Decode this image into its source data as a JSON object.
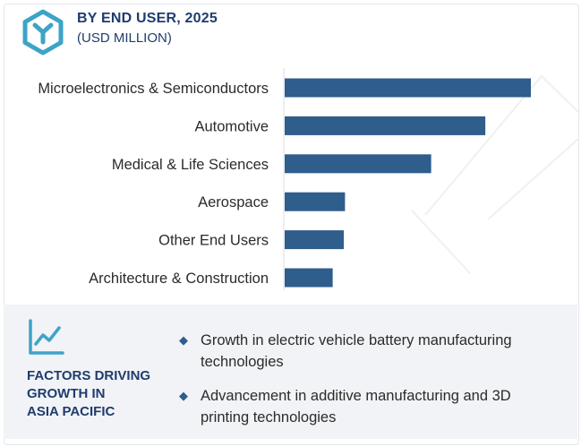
{
  "header": {
    "title": "BY END USER, 2025",
    "subtitle": "(USD MILLION)"
  },
  "chart_data": {
    "type": "bar",
    "orientation": "horizontal",
    "categories": [
      "Microelectronics & Semiconductors",
      "Automotive",
      "Medical & Life Sciences",
      "Aerospace",
      "Other End Users",
      "Architecture & Construction"
    ],
    "values": [
      100,
      81.5,
      59.5,
      24.5,
      24,
      19.5
    ],
    "value_scale": "relative (no axis values shown)",
    "xlabel": "",
    "ylabel": "",
    "grid": false,
    "bar_color": "#2f5d8c"
  },
  "factors": {
    "title_lines": [
      "FACTORS DRIVING",
      "GROWTH IN",
      "ASIA PACIFIC"
    ],
    "items": [
      "Growth in electric vehicle battery manufacturing technologies",
      "Advancement in additive manufacturing and 3D printing technologies"
    ]
  },
  "colors": {
    "accent": "#2f5d8c",
    "heading": "#1f3c6e",
    "logo": "#3ea3c8",
    "panel_bg": "#f1f3f6"
  },
  "icons": {
    "logo": "hexagon-y-logo-icon",
    "trend": "line-chart-trend-icon",
    "bullet": "diamond-bullet-icon"
  }
}
